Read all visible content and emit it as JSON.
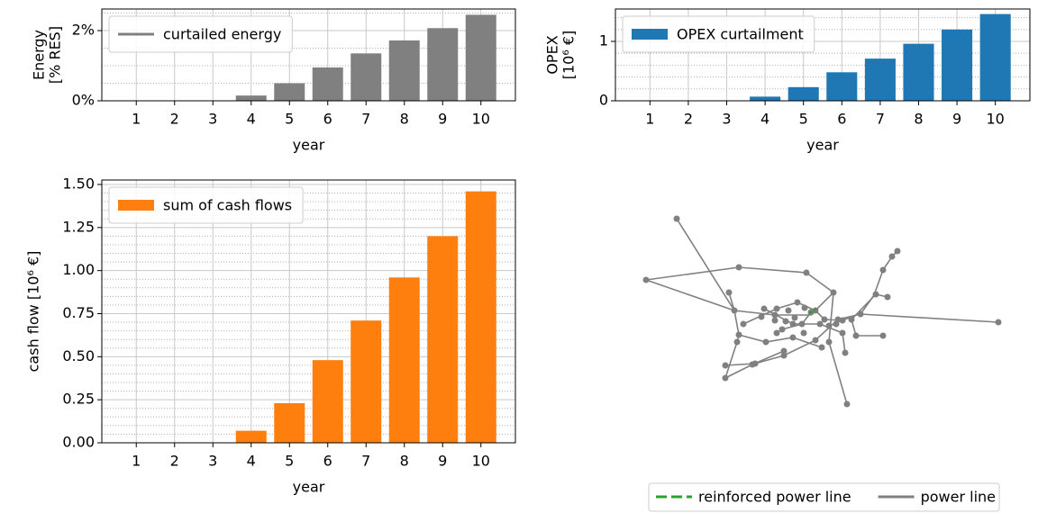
{
  "chart_data": [
    {
      "type": "bar",
      "ylabel": [
        "Energy",
        "[% RES]"
      ],
      "xlabel": "year",
      "categories": [
        "1",
        "2",
        "3",
        "4",
        "5",
        "6",
        "7",
        "8",
        "9",
        "10"
      ],
      "series": [
        {
          "name": "curtailed energy",
          "color": "#808080",
          "values": [
            0,
            0,
            0,
            0.15,
            0.5,
            0.95,
            1.35,
            1.72,
            2.07,
            2.45
          ]
        }
      ],
      "legend_marker": "line",
      "legend": "upper left",
      "grid": true,
      "ylim": [
        0,
        2.615
      ],
      "yticks": [
        {
          "value": 0,
          "label": "0%"
        },
        {
          "value": 2,
          "label": "2%"
        }
      ],
      "yminorticks": [
        0.5,
        1,
        1.5,
        2.5
      ]
    },
    {
      "type": "bar",
      "ylabel": [
        "OPEX",
        "[10⁶ €]"
      ],
      "xlabel": "year",
      "categories": [
        "1",
        "2",
        "3",
        "4",
        "5",
        "6",
        "7",
        "8",
        "9",
        "10"
      ],
      "series": [
        {
          "name": "OPEX curtailment",
          "color": "#1f77b4",
          "values": [
            0,
            0,
            0,
            0.07,
            0.23,
            0.48,
            0.71,
            0.96,
            1.2,
            1.46
          ]
        }
      ],
      "legend_marker": "patch",
      "legend": "upper left",
      "grid": true,
      "ylim": [
        0,
        1.545
      ],
      "yticks": [
        0,
        1
      ],
      "yminorticks": [
        0.2,
        0.4,
        0.6,
        0.8,
        1.2,
        1.4
      ]
    },
    {
      "type": "bar",
      "ylabel": [
        "cash flow [10⁶ €]"
      ],
      "xlabel": "year",
      "categories": [
        "1",
        "2",
        "3",
        "4",
        "5",
        "6",
        "7",
        "8",
        "9",
        "10"
      ],
      "series": [
        {
          "name": "sum of cash flows",
          "color": "#ff7f0e",
          "values": [
            0,
            0,
            0,
            0.07,
            0.23,
            0.48,
            0.71,
            0.96,
            1.2,
            1.46
          ]
        }
      ],
      "legend_marker": "patch",
      "legend": "upper left",
      "grid": true,
      "ylim": [
        0,
        1.526
      ],
      "yticks": [
        {
          "value": 0,
          "label": "0.00"
        },
        {
          "value": 0.25,
          "label": "0.25"
        },
        {
          "value": 0.5,
          "label": "0.50"
        },
        {
          "value": 0.75,
          "label": "0.75"
        },
        {
          "value": 1,
          "label": "1.00"
        },
        {
          "value": 1.25,
          "label": "1.25"
        },
        {
          "value": 1.5,
          "label": "1.50"
        }
      ],
      "yminorticks": [
        0.05,
        0.1,
        0.15,
        0.2,
        0.3,
        0.35,
        0.4,
        0.45,
        0.55,
        0.6,
        0.65,
        0.7,
        0.8,
        0.85,
        0.9,
        0.95,
        1.05,
        1.1,
        1.15,
        1.2,
        1.3,
        1.35,
        1.4,
        1.45
      ]
    },
    {
      "type": "network",
      "legend": "lower right",
      "series": [
        {
          "name": "reinforced power line",
          "color": "#2ca02c"
        },
        {
          "name": "power line",
          "color": "#808080"
        }
      ]
    }
  ]
}
